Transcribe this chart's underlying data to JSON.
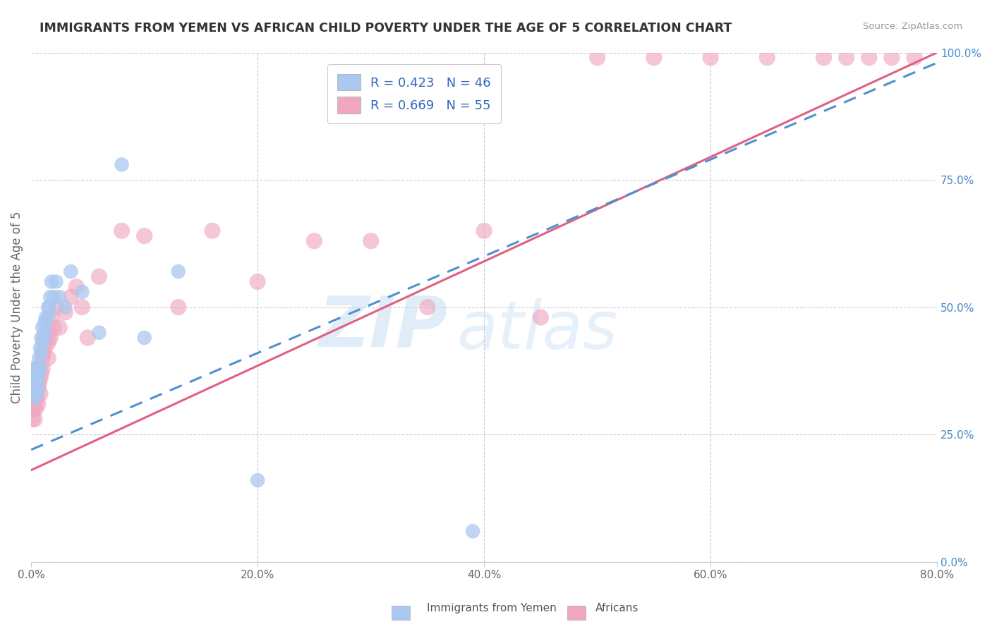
{
  "title": "IMMIGRANTS FROM YEMEN VS AFRICAN CHILD POVERTY UNDER THE AGE OF 5 CORRELATION CHART",
  "source": "Source: ZipAtlas.com",
  "ylabel": "Child Poverty Under the Age of 5",
  "xlim": [
    0,
    0.8
  ],
  "ylim": [
    0,
    1.0
  ],
  "xticks": [
    0.0,
    0.2,
    0.4,
    0.6,
    0.8
  ],
  "xtick_labels": [
    "0.0%",
    "20.0%",
    "40.0%",
    "60.0%",
    "80.0%"
  ],
  "yticks": [
    0.0,
    0.25,
    0.5,
    0.75,
    1.0
  ],
  "ytick_labels": [
    "0.0%",
    "25.0%",
    "50.0%",
    "75.0%",
    "100.0%"
  ],
  "watermark_zip": "ZIP",
  "watermark_atlas": "atlas",
  "legend_R1": "R = 0.423",
  "legend_N1": "N = 46",
  "legend_R2": "R = 0.669",
  "legend_N2": "N = 55",
  "yemen_color": "#aac8f0",
  "african_color": "#f0a8c0",
  "yemen_line_color": "#5090d0",
  "african_line_color": "#e06080",
  "background_color": "#ffffff",
  "grid_color": "#cccccc",
  "yemen_line_x0": 0.0,
  "yemen_line_y0": 0.22,
  "yemen_line_x1": 0.8,
  "yemen_line_y1": 0.98,
  "african_line_x0": 0.0,
  "african_line_y0": 0.18,
  "african_line_x1": 0.8,
  "african_line_y1": 1.0,
  "yemen_x": [
    0.001,
    0.001,
    0.002,
    0.002,
    0.002,
    0.003,
    0.003,
    0.003,
    0.003,
    0.004,
    0.004,
    0.005,
    0.005,
    0.005,
    0.006,
    0.006,
    0.006,
    0.007,
    0.007,
    0.008,
    0.008,
    0.009,
    0.009,
    0.01,
    0.01,
    0.011,
    0.012,
    0.012,
    0.013,
    0.015,
    0.015,
    0.016,
    0.017,
    0.018,
    0.02,
    0.022,
    0.025,
    0.03,
    0.035,
    0.045,
    0.06,
    0.08,
    0.1,
    0.13,
    0.2,
    0.39
  ],
  "yemen_y": [
    0.38,
    0.35,
    0.36,
    0.34,
    0.32,
    0.37,
    0.36,
    0.35,
    0.33,
    0.36,
    0.34,
    0.38,
    0.36,
    0.33,
    0.38,
    0.36,
    0.34,
    0.4,
    0.38,
    0.42,
    0.38,
    0.44,
    0.41,
    0.46,
    0.43,
    0.44,
    0.47,
    0.45,
    0.48,
    0.5,
    0.48,
    0.5,
    0.52,
    0.55,
    0.52,
    0.55,
    0.52,
    0.5,
    0.57,
    0.53,
    0.45,
    0.78,
    0.44,
    0.57,
    0.16,
    0.06
  ],
  "african_x": [
    0.001,
    0.001,
    0.002,
    0.002,
    0.003,
    0.003,
    0.004,
    0.004,
    0.005,
    0.005,
    0.006,
    0.006,
    0.007,
    0.007,
    0.008,
    0.008,
    0.009,
    0.01,
    0.01,
    0.011,
    0.012,
    0.013,
    0.015,
    0.015,
    0.016,
    0.017,
    0.018,
    0.02,
    0.022,
    0.025,
    0.03,
    0.035,
    0.04,
    0.045,
    0.05,
    0.06,
    0.08,
    0.1,
    0.13,
    0.16,
    0.2,
    0.25,
    0.3,
    0.35,
    0.4,
    0.45,
    0.5,
    0.55,
    0.6,
    0.65,
    0.7,
    0.72,
    0.74,
    0.76,
    0.78
  ],
  "african_y": [
    0.3,
    0.28,
    0.32,
    0.3,
    0.35,
    0.28,
    0.33,
    0.3,
    0.36,
    0.32,
    0.34,
    0.31,
    0.38,
    0.35,
    0.36,
    0.33,
    0.37,
    0.4,
    0.38,
    0.41,
    0.42,
    0.44,
    0.43,
    0.4,
    0.45,
    0.44,
    0.48,
    0.46,
    0.5,
    0.46,
    0.49,
    0.52,
    0.54,
    0.5,
    0.44,
    0.56,
    0.65,
    0.64,
    0.5,
    0.65,
    0.55,
    0.63,
    0.63,
    0.5,
    0.65,
    0.48,
    0.99,
    0.99,
    0.99,
    0.99,
    0.99,
    0.99,
    0.99,
    0.99,
    0.99
  ]
}
